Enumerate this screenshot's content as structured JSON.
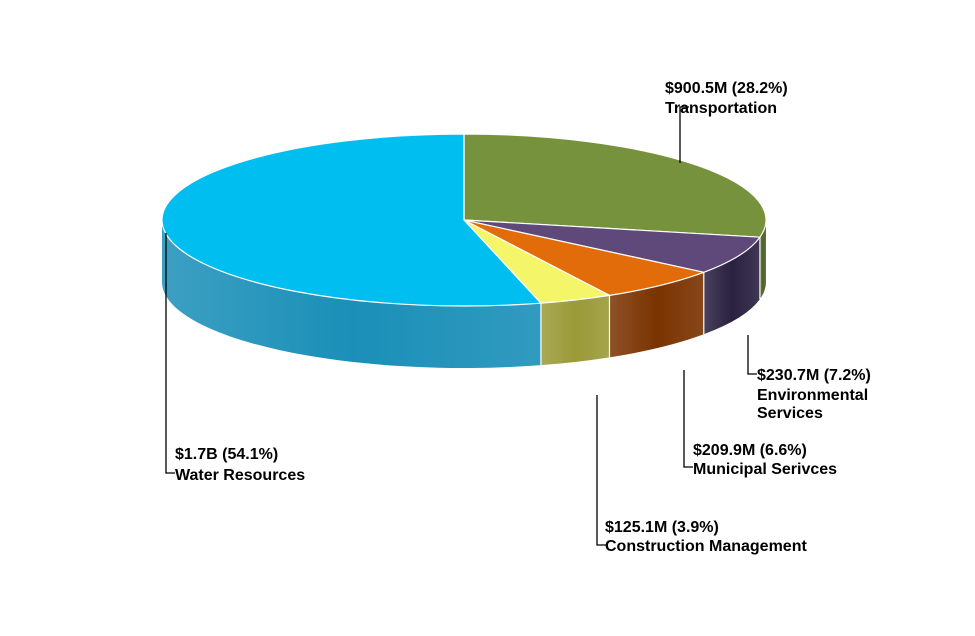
{
  "chart_data": {
    "type": "pie",
    "style": "3d",
    "start_angle_deg": 0,
    "direction": "clockwise",
    "slices": [
      {
        "value_label": "$900.5M (28.2%)",
        "category": "Transportation",
        "value": 900.5,
        "percent": 28.2,
        "color": "#76923C",
        "side_color": "#4F6228"
      },
      {
        "value_label": "$230.7M (7.2%)",
        "category_lines": [
          "Environmental",
          "Services"
        ],
        "value": 230.7,
        "percent": 7.2,
        "color": "#5F497A",
        "side_color": "#2A2040"
      },
      {
        "value_label": "$209.9M (6.6%)",
        "category": "Municipal Serivces",
        "value": 209.9,
        "percent": 6.6,
        "color": "#E36C0A",
        "side_color": "#7A3300"
      },
      {
        "value_label": "$125.1M (3.9%)",
        "category": "Construction Management",
        "value": 125.1,
        "percent": 3.9,
        "color": "#F5F56A",
        "side_color": "#9A9A38"
      },
      {
        "value_label": "$1.7B (54.1%)",
        "category": "Water Resources",
        "value": 1700,
        "percent": 54.1,
        "color": "#00BFF0",
        "side_color": "#1A8FB8"
      }
    ]
  }
}
